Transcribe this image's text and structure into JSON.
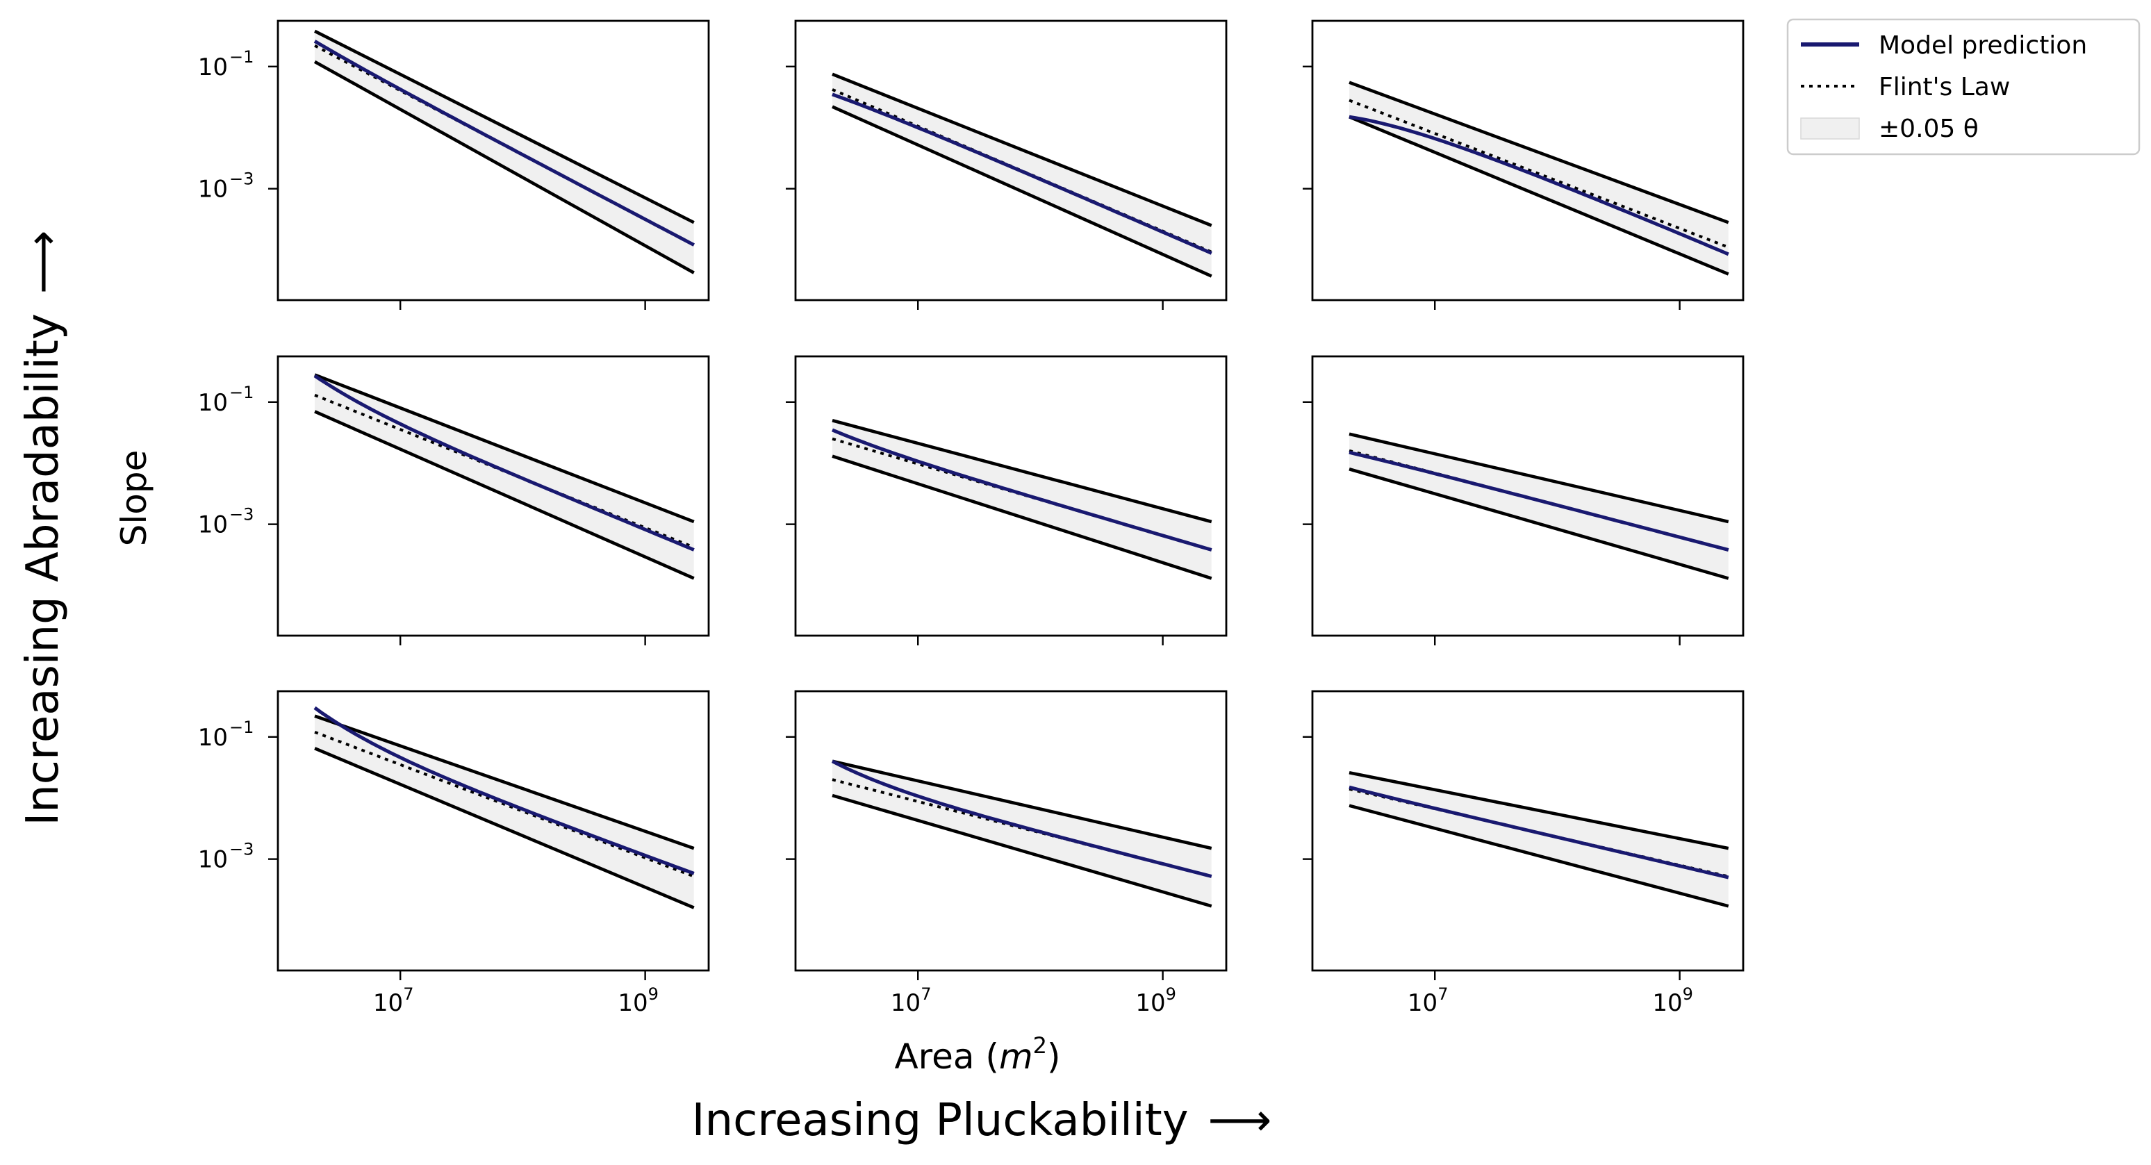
{
  "chart_data": {
    "type": "line",
    "grid": false,
    "x_scale": "log",
    "y_scale": "log",
    "xlim": [
      1000000,
      3300000000
    ],
    "ylim": [
      1.5e-05,
      0.56
    ],
    "x_ticks": [
      {
        "value": 10000000,
        "base": "10",
        "exp": "7"
      },
      {
        "value": 1000000000,
        "base": "10",
        "exp": "9"
      }
    ],
    "y_ticks": [
      {
        "value": 0.1,
        "base": "10",
        "exp": "−1"
      },
      {
        "value": 0.001,
        "base": "10",
        "exp": "−3"
      }
    ],
    "xlabel": {
      "text": "Area (",
      "var": "m",
      "exp": "2",
      "close": ")"
    },
    "ylabel": "Slope",
    "row_axis_label": {
      "text": "Increasing Abradability",
      "arrow": "⟶"
    },
    "col_axis_label": {
      "text": "Increasing Pluckability",
      "arrow": "⟶"
    },
    "legend": {
      "location": "upper right, outside plot area",
      "entries": [
        {
          "label": "Model prediction",
          "style": "solid",
          "color": "#191970"
        },
        {
          "label": "Flint's Law",
          "style": "dotted",
          "color": "#000000"
        },
        {
          "label": "±0.05 θ",
          "style": "band",
          "color": "#f0f0f0"
        }
      ]
    },
    "colors": {
      "model": "#191970",
      "flint": "#000000",
      "band_fill": "#f0f0f0",
      "band_edge": "#000000"
    },
    "panels": [
      {
        "row": 1,
        "col": 1,
        "x": [
          2000000,
          2500000000
        ],
        "flint": [
          0.22,
          0.00012
        ],
        "upper": [
          0.38,
          0.00028
        ],
        "lower": [
          0.12,
          4.2e-05
        ],
        "model": [
          0.26,
          0.00012
        ]
      },
      {
        "row": 1,
        "col": 2,
        "x": [
          2000000,
          2500000000
        ],
        "flint": [
          0.042,
          9.2e-05
        ],
        "upper": [
          0.075,
          0.00025
        ],
        "lower": [
          0.022,
          3.7e-05
        ],
        "model": [
          0.035,
          8.8e-05
        ]
      },
      {
        "row": 1,
        "col": 3,
        "x": [
          2000000,
          2500000000
        ],
        "flint": [
          0.028,
          0.00011
        ],
        "upper": [
          0.055,
          0.00028
        ],
        "lower": [
          0.015,
          4e-05
        ],
        "model": [
          0.015,
          8.5e-05
        ]
      },
      {
        "row": 2,
        "col": 1,
        "x": [
          2000000,
          2500000000
        ],
        "flint": [
          0.13,
          0.00042
        ],
        "upper": [
          0.28,
          0.0011
        ],
        "lower": [
          0.07,
          0.00013
        ],
        "model": [
          0.27,
          0.00038
        ]
      },
      {
        "row": 2,
        "col": 2,
        "x": [
          2000000,
          2500000000
        ],
        "flint": [
          0.025,
          0.00038
        ],
        "upper": [
          0.05,
          0.0011
        ],
        "lower": [
          0.013,
          0.00013
        ],
        "model": [
          0.035,
          0.00038
        ]
      },
      {
        "row": 2,
        "col": 3,
        "x": [
          2000000,
          2500000000
        ],
        "flint": [
          0.016,
          0.00038
        ],
        "upper": [
          0.03,
          0.0011
        ],
        "lower": [
          0.008,
          0.00013
        ],
        "model": [
          0.015,
          0.00038
        ]
      },
      {
        "row": 3,
        "col": 1,
        "x": [
          2000000,
          2500000000
        ],
        "flint": [
          0.12,
          0.00052
        ],
        "upper": [
          0.22,
          0.0015
        ],
        "lower": [
          0.065,
          0.00016
        ],
        "model": [
          0.3,
          0.00058
        ]
      },
      {
        "row": 3,
        "col": 2,
        "x": [
          2000000,
          2500000000
        ],
        "flint": [
          0.02,
          0.00052
        ],
        "upper": [
          0.04,
          0.0015
        ],
        "lower": [
          0.011,
          0.00017
        ],
        "model": [
          0.04,
          0.00052
        ]
      },
      {
        "row": 3,
        "col": 3,
        "x": [
          2000000,
          2500000000
        ],
        "flint": [
          0.014,
          0.00052
        ],
        "upper": [
          0.026,
          0.0015
        ],
        "lower": [
          0.0075,
          0.00017
        ],
        "model": [
          0.015,
          0.0005
        ]
      }
    ]
  }
}
